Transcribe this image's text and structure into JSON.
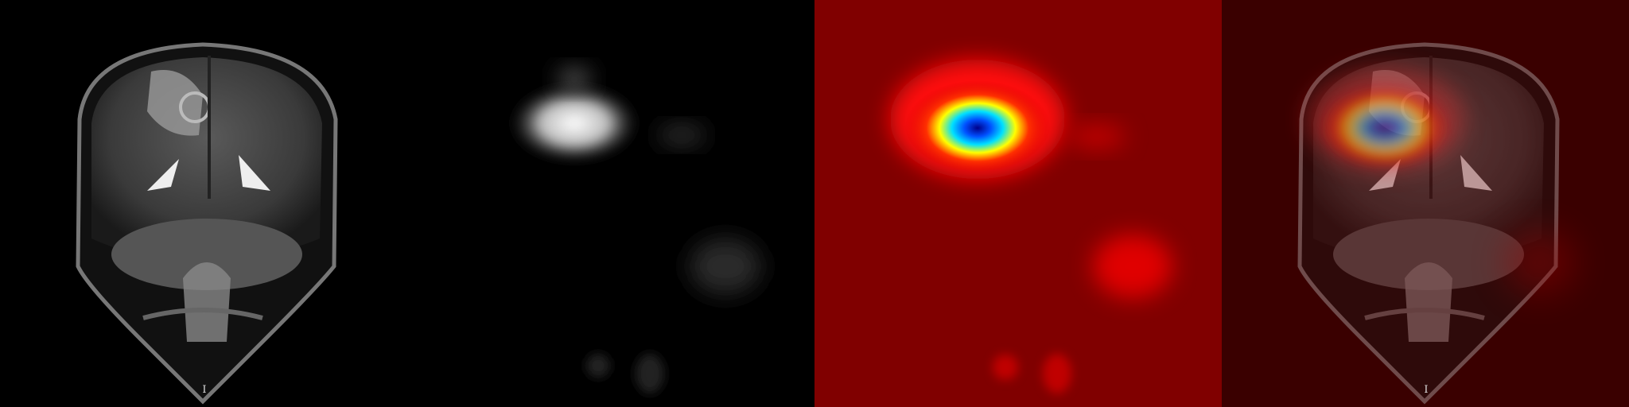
{
  "image": {
    "markers": [
      "I",
      "I"
    ]
  }
}
